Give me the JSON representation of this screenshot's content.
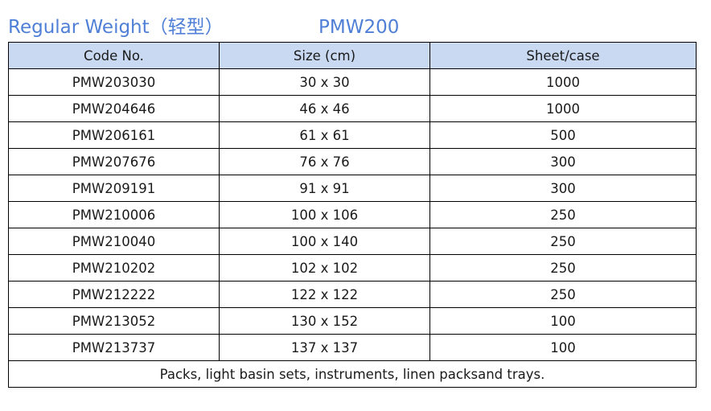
{
  "heading": {
    "title": "Regular Weight（轻型）",
    "model": "PMW200"
  },
  "table": {
    "headers": [
      "Code No.",
      "Size (cm)",
      "Sheet/case"
    ],
    "rows": [
      [
        "PMW203030",
        "30 x 30",
        "1000"
      ],
      [
        "PMW204646",
        "46 x 46",
        "1000"
      ],
      [
        "PMW206161",
        "61 x 61",
        "500"
      ],
      [
        "PMW207676",
        "76 x 76",
        "300"
      ],
      [
        "PMW209191",
        "91 x 91",
        "300"
      ],
      [
        "PMW210006",
        "100 x 106",
        "250"
      ],
      [
        "PMW210040",
        "100 x 140",
        "250"
      ],
      [
        "PMW210202",
        "102 x 102",
        "250"
      ],
      [
        "PMW212222",
        "122 x 122",
        "250"
      ],
      [
        "PMW213052",
        "130 x 152",
        "100"
      ],
      [
        "PMW213737",
        "137 x 137",
        "100"
      ]
    ],
    "footer": "Packs, light basin sets, instruments, linen packsand trays."
  },
  "colors": {
    "heading": "#4f7fd6",
    "header_fill": "#c9d9f2",
    "border": "#000000"
  }
}
